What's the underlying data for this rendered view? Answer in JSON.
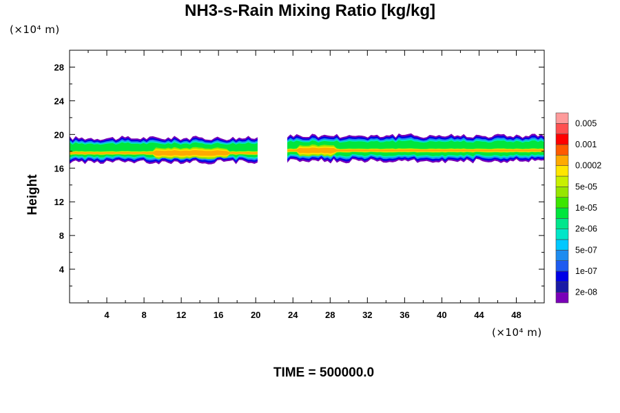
{
  "chart_data": {
    "type": "heatmap",
    "title": "NH3-s-Rain Mixing Ratio [kg/kg]",
    "ylabel": "Height",
    "xlabel": "",
    "x_unit": "(×10⁴ m)",
    "y_unit": "(×10⁴ m)",
    "xlim": [
      0,
      51
    ],
    "ylim": [
      0,
      30
    ],
    "x_ticks": [
      4,
      8,
      12,
      16,
      20,
      24,
      28,
      32,
      36,
      40,
      44,
      48
    ],
    "y_ticks": [
      4,
      8,
      12,
      16,
      20,
      24,
      28
    ],
    "footer": "TIME = 500000.0",
    "colorbar": {
      "colors": [
        "#7a00b8",
        "#1a1aa6",
        "#0000e6",
        "#1e5bf0",
        "#1e8cf0",
        "#00c8ff",
        "#00e6c8",
        "#00e68c",
        "#00e63c",
        "#3ce600",
        "#96e600",
        "#c8f000",
        "#ffe600",
        "#ffaa00",
        "#ff5a00",
        "#ff0000",
        "#ff5050",
        "#ff9b9b"
      ],
      "labels": [
        "2e-08",
        "1e-07",
        "5e-07",
        "2e-06",
        "1e-05",
        "5e-05",
        "0.0002",
        "0.001",
        "0.005"
      ]
    },
    "bands": [
      {
        "x_start": 0,
        "x_end": 20.2,
        "z_bottom": 16.6,
        "z_top": 19.7,
        "core_x": [
          9,
          17
        ],
        "core_z": 17.8
      },
      {
        "x_start": 23.4,
        "x_end": 51,
        "z_bottom": 16.7,
        "z_top": 20.0,
        "core_x": [
          24.5,
          28.5
        ],
        "core_z": 18.1
      }
    ]
  }
}
